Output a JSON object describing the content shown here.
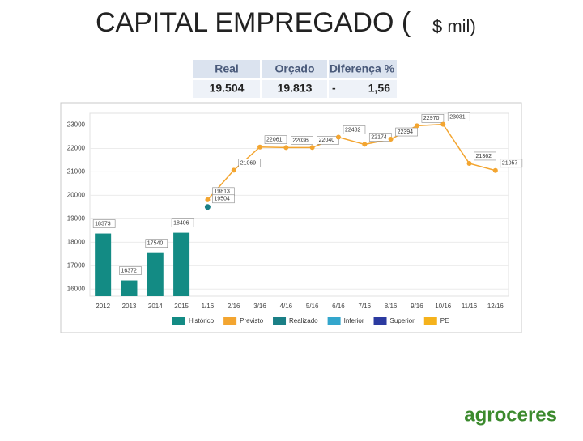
{
  "title": "CAPITAL EMPREGADO (",
  "title_unit": "$ mil)",
  "table": {
    "header": [
      "Real",
      "Orçado",
      "Diferença %"
    ],
    "rows": [
      [
        "19.504",
        "19.813",
        "-",
        "1,56"
      ]
    ]
  },
  "chart_data": {
    "type": "bar",
    "categories": [
      "2012",
      "2013",
      "2014",
      "2015",
      "1/16",
      "2/16",
      "3/16",
      "4/16",
      "5/16",
      "6/16",
      "7/16",
      "8/16",
      "9/16",
      "10/16",
      "11/16",
      "12/16"
    ],
    "series": [
      {
        "name": "Histórico",
        "type": "bar",
        "color": "#138b84",
        "values": [
          18373,
          16372,
          17540,
          18406,
          null,
          null,
          null,
          null,
          null,
          null,
          null,
          null,
          null,
          null,
          null,
          null
        ]
      },
      {
        "name": "Previsto",
        "type": "line",
        "color": "#f3a530",
        "values": [
          null,
          null,
          null,
          null,
          19813,
          21069,
          22061,
          22036,
          22040,
          22482,
          22174,
          22394,
          22970,
          23031,
          21362,
          21057
        ]
      },
      {
        "name": "Realizado",
        "type": "line",
        "color": "#1a7f86",
        "values": [
          null,
          null,
          null,
          null,
          19504,
          null,
          null,
          null,
          null,
          null,
          null,
          null,
          null,
          null,
          null,
          null
        ]
      },
      {
        "name": "Inferior",
        "type": "line",
        "color": "#33a6cc",
        "values": [
          null,
          null,
          null,
          null,
          null,
          null,
          null,
          null,
          null,
          null,
          null,
          null,
          null,
          null,
          null,
          null
        ]
      },
      {
        "name": "Superior",
        "type": "line",
        "color": "#2b3aa0",
        "values": [
          null,
          null,
          null,
          null,
          null,
          null,
          null,
          null,
          null,
          null,
          null,
          null,
          null,
          null,
          null,
          null
        ]
      },
      {
        "name": "PE",
        "type": "bar",
        "color": "#f5b21c",
        "values": [
          null,
          null,
          null,
          null,
          null,
          null,
          null,
          null,
          null,
          null,
          null,
          null,
          null,
          null,
          null,
          null
        ]
      }
    ],
    "ylim": [
      15700,
      23500
    ],
    "yticks": [
      16000,
      17000,
      18000,
      19000,
      20000,
      21000,
      22000,
      23000
    ],
    "grid": true
  },
  "brand": "agroceres"
}
